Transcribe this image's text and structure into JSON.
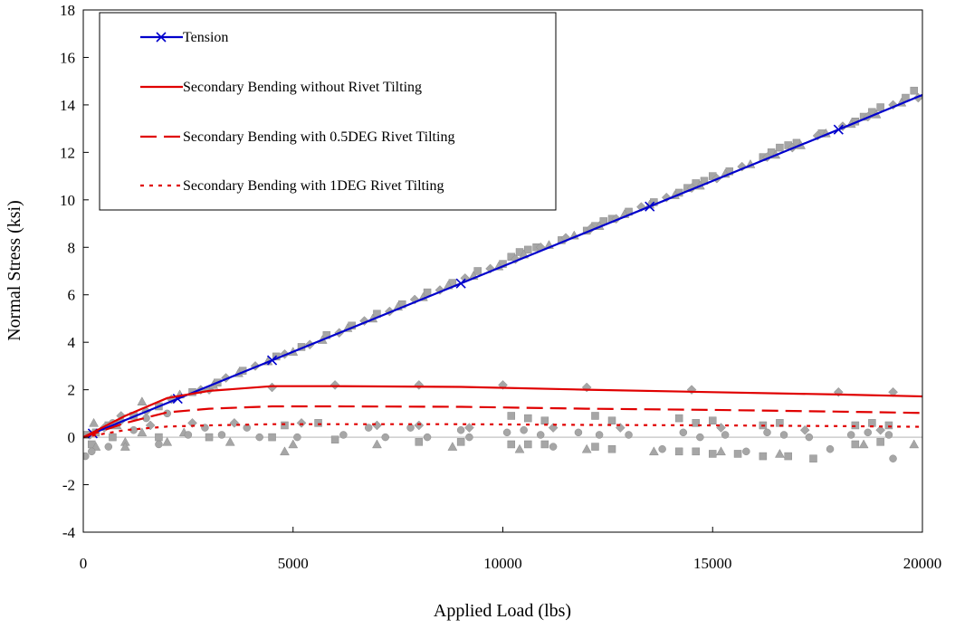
{
  "chart_data": {
    "type": "line",
    "title": "",
    "xlabel": "Applied Load (lbs)",
    "ylabel": "Normal Stress (ksi)",
    "xlim": [
      0,
      20000
    ],
    "ylim": [
      -4,
      18
    ],
    "xticks": [
      0,
      5000,
      10000,
      15000,
      20000
    ],
    "yticks": [
      -4,
      -2,
      0,
      2,
      4,
      6,
      8,
      10,
      12,
      14,
      16,
      18
    ],
    "grid": false,
    "legend_position": "top-left",
    "series": [
      {
        "name": "Tension",
        "color": "#0000cc",
        "style": "solid-with-x-markers",
        "x": [
          0,
          225,
          2250,
          4500,
          9000,
          13500,
          18000,
          20000
        ],
        "y": [
          0.0,
          0.16,
          1.62,
          3.24,
          6.48,
          9.72,
          12.96,
          14.42
        ],
        "marker_x": [
          225,
          2250,
          4500,
          9000,
          13500,
          18000
        ],
        "marker_y": [
          0.16,
          1.62,
          3.24,
          6.48,
          9.72,
          12.96
        ]
      },
      {
        "name": "Secondary Bending without Rivet Tilting",
        "color": "#e00000",
        "style": "solid",
        "x": [
          0,
          500,
          1000,
          2000,
          3000,
          4500,
          6000,
          9000,
          12000,
          15000,
          18000,
          20000
        ],
        "y": [
          0.0,
          0.45,
          0.9,
          1.65,
          1.95,
          2.15,
          2.15,
          2.12,
          2.0,
          1.9,
          1.8,
          1.72
        ]
      },
      {
        "name": "Secondary Bending with 0.5DEG Rivet Tilting",
        "color": "#e00000",
        "style": "dashed",
        "x": [
          0,
          500,
          1000,
          2000,
          3000,
          4500,
          6000,
          9000,
          12000,
          15000,
          18000,
          20000
        ],
        "y": [
          0.0,
          0.3,
          0.6,
          1.05,
          1.2,
          1.3,
          1.3,
          1.28,
          1.2,
          1.15,
          1.08,
          1.02
        ]
      },
      {
        "name": "Secondary Bending with 1DEG Rivet Tilting",
        "color": "#e00000",
        "style": "dotted",
        "x": [
          0,
          500,
          1000,
          2000,
          3000,
          4500,
          6000,
          9000,
          12000,
          15000,
          18000,
          20000
        ],
        "y": [
          0.0,
          0.15,
          0.3,
          0.45,
          0.5,
          0.55,
          0.55,
          0.55,
          0.52,
          0.5,
          0.47,
          0.44
        ]
      }
    ],
    "baseline_series": {
      "color": "#cccccc",
      "x": [
        0,
        20000
      ],
      "y": [
        0.0,
        0.0
      ]
    },
    "scatter_series": [
      {
        "marker": "square",
        "color": "#a6a6a6",
        "points": [
          [
            100,
            0.1
          ],
          [
            300,
            0.2
          ],
          [
            600,
            0.5
          ],
          [
            1200,
            0.9
          ],
          [
            1800,
            1.3
          ],
          [
            2600,
            1.9
          ],
          [
            3200,
            2.3
          ],
          [
            3800,
            2.8
          ],
          [
            4600,
            3.4
          ],
          [
            5200,
            3.8
          ],
          [
            5800,
            4.3
          ],
          [
            6400,
            4.7
          ],
          [
            7000,
            5.2
          ],
          [
            7600,
            5.6
          ],
          [
            8200,
            6.1
          ],
          [
            8800,
            6.5
          ],
          [
            9400,
            7.0
          ],
          [
            10000,
            7.3
          ],
          [
            10200,
            7.6
          ],
          [
            10400,
            7.8
          ],
          [
            10600,
            7.9
          ],
          [
            10800,
            8.0
          ],
          [
            11400,
            8.3
          ],
          [
            12000,
            8.7
          ],
          [
            12200,
            8.9
          ],
          [
            12400,
            9.1
          ],
          [
            12600,
            9.2
          ],
          [
            13000,
            9.5
          ],
          [
            13600,
            9.9
          ],
          [
            14200,
            10.3
          ],
          [
            14400,
            10.5
          ],
          [
            14600,
            10.7
          ],
          [
            14800,
            10.8
          ],
          [
            15000,
            11.0
          ],
          [
            15400,
            11.2
          ],
          [
            16200,
            11.8
          ],
          [
            16400,
            12.0
          ],
          [
            16600,
            12.2
          ],
          [
            16800,
            12.3
          ],
          [
            17000,
            12.4
          ],
          [
            17600,
            12.8
          ],
          [
            18400,
            13.3
          ],
          [
            18600,
            13.5
          ],
          [
            18800,
            13.7
          ],
          [
            19000,
            13.9
          ],
          [
            19600,
            14.3
          ],
          [
            19800,
            14.6
          ],
          [
            200,
            -0.3
          ],
          [
            700,
            0.0
          ],
          [
            1800,
            0.0
          ],
          [
            3000,
            0.0
          ],
          [
            4500,
            0.0
          ],
          [
            6000,
            -0.1
          ],
          [
            8000,
            -0.2
          ],
          [
            9000,
            -0.2
          ],
          [
            10200,
            -0.3
          ],
          [
            10600,
            -0.3
          ],
          [
            11000,
            -0.3
          ],
          [
            12200,
            -0.4
          ],
          [
            12600,
            -0.5
          ],
          [
            14200,
            -0.6
          ],
          [
            14600,
            -0.6
          ],
          [
            15000,
            -0.7
          ],
          [
            15600,
            -0.7
          ],
          [
            16200,
            -0.8
          ],
          [
            16800,
            -0.8
          ],
          [
            17400,
            -0.9
          ],
          [
            18400,
            -0.3
          ],
          [
            19000,
            -0.2
          ],
          [
            10200,
            0.9
          ],
          [
            10600,
            0.8
          ],
          [
            11000,
            0.7
          ],
          [
            12200,
            0.9
          ],
          [
            12600,
            0.7
          ],
          [
            14200,
            0.8
          ],
          [
            14600,
            0.6
          ],
          [
            15000,
            0.7
          ],
          [
            16200,
            0.5
          ],
          [
            16600,
            0.6
          ],
          [
            18400,
            0.5
          ],
          [
            18800,
            0.6
          ],
          [
            19200,
            0.5
          ],
          [
            4800,
            0.5
          ],
          [
            5600,
            0.6
          ]
        ]
      },
      {
        "marker": "diamond",
        "color": "#a6a6a6",
        "points": [
          [
            150,
            0.1
          ],
          [
            500,
            0.4
          ],
          [
            900,
            0.7
          ],
          [
            1500,
            1.1
          ],
          [
            2100,
            1.6
          ],
          [
            2800,
            2.0
          ],
          [
            3400,
            2.5
          ],
          [
            4100,
            3.0
          ],
          [
            4800,
            3.5
          ],
          [
            5400,
            3.9
          ],
          [
            6100,
            4.4
          ],
          [
            6700,
            4.9
          ],
          [
            7300,
            5.3
          ],
          [
            7900,
            5.8
          ],
          [
            8500,
            6.2
          ],
          [
            9100,
            6.7
          ],
          [
            9700,
            7.1
          ],
          [
            10300,
            7.5
          ],
          [
            10900,
            8.0
          ],
          [
            11500,
            8.4
          ],
          [
            12100,
            8.8
          ],
          [
            12700,
            9.2
          ],
          [
            13300,
            9.7
          ],
          [
            13900,
            10.1
          ],
          [
            14500,
            10.5
          ],
          [
            15100,
            10.9
          ],
          [
            15700,
            11.4
          ],
          [
            16300,
            11.8
          ],
          [
            16900,
            12.2
          ],
          [
            17500,
            12.7
          ],
          [
            18100,
            13.1
          ],
          [
            18700,
            13.5
          ],
          [
            19300,
            14.0
          ],
          [
            19900,
            14.3
          ],
          [
            900,
            0.9
          ],
          [
            1600,
            0.5
          ],
          [
            2600,
            0.6
          ],
          [
            3600,
            0.6
          ],
          [
            5200,
            0.6
          ],
          [
            7000,
            0.5
          ],
          [
            8000,
            0.5
          ],
          [
            9200,
            0.4
          ],
          [
            11200,
            0.4
          ],
          [
            12800,
            0.4
          ],
          [
            15200,
            0.4
          ],
          [
            17200,
            0.3
          ],
          [
            19000,
            0.3
          ],
          [
            3000,
            2.0
          ],
          [
            4500,
            2.1
          ],
          [
            6000,
            2.2
          ],
          [
            8000,
            2.2
          ],
          [
            10000,
            2.2
          ],
          [
            12000,
            2.1
          ],
          [
            14500,
            2.0
          ],
          [
            18000,
            1.9
          ],
          [
            19300,
            1.9
          ]
        ]
      },
      {
        "marker": "triangle",
        "color": "#a6a6a6",
        "points": [
          [
            250,
            0.6
          ],
          [
            800,
            0.5
          ],
          [
            1400,
            1.5
          ],
          [
            2300,
            1.8
          ],
          [
            3100,
            2.2
          ],
          [
            3700,
            2.7
          ],
          [
            4400,
            3.2
          ],
          [
            5000,
            3.6
          ],
          [
            5700,
            4.1
          ],
          [
            6300,
            4.6
          ],
          [
            6900,
            5.0
          ],
          [
            7500,
            5.5
          ],
          [
            8100,
            5.9
          ],
          [
            8700,
            6.4
          ],
          [
            9300,
            6.8
          ],
          [
            9900,
            7.2
          ],
          [
            10500,
            7.7
          ],
          [
            11100,
            8.1
          ],
          [
            11700,
            8.5
          ],
          [
            12300,
            8.9
          ],
          [
            12900,
            9.4
          ],
          [
            13500,
            9.8
          ],
          [
            14100,
            10.2
          ],
          [
            14700,
            10.6
          ],
          [
            15300,
            11.1
          ],
          [
            15900,
            11.5
          ],
          [
            16500,
            11.9
          ],
          [
            17100,
            12.3
          ],
          [
            17700,
            12.8
          ],
          [
            18300,
            13.2
          ],
          [
            18900,
            13.6
          ],
          [
            19500,
            14.1
          ],
          [
            300,
            -0.4
          ],
          [
            1000,
            -0.2
          ],
          [
            2000,
            -0.2
          ],
          [
            3500,
            -0.2
          ],
          [
            5000,
            -0.3
          ],
          [
            7000,
            -0.3
          ],
          [
            8800,
            -0.4
          ],
          [
            10400,
            -0.5
          ],
          [
            12000,
            -0.5
          ],
          [
            13600,
            -0.6
          ],
          [
            15200,
            -0.6
          ],
          [
            16600,
            -0.7
          ],
          [
            18600,
            -0.3
          ],
          [
            19800,
            -0.3
          ],
          [
            1400,
            0.2
          ],
          [
            2400,
            0.2
          ],
          [
            1000,
            -0.4
          ],
          [
            4800,
            -0.6
          ]
        ]
      },
      {
        "marker": "circle",
        "color": "#a6a6a6",
        "points": [
          [
            50,
            -0.8
          ],
          [
            200,
            -0.6
          ],
          [
            600,
            -0.4
          ],
          [
            1200,
            0.3
          ],
          [
            1800,
            -0.3
          ],
          [
            2500,
            0.1
          ],
          [
            3300,
            0.1
          ],
          [
            4200,
            0.0
          ],
          [
            5100,
            0.0
          ],
          [
            6200,
            0.1
          ],
          [
            7200,
            0.0
          ],
          [
            8200,
            0.0
          ],
          [
            9200,
            0.0
          ],
          [
            10100,
            0.2
          ],
          [
            10500,
            0.3
          ],
          [
            10900,
            0.1
          ],
          [
            11800,
            0.2
          ],
          [
            12300,
            0.1
          ],
          [
            13000,
            0.1
          ],
          [
            14300,
            0.2
          ],
          [
            14700,
            0.0
          ],
          [
            15300,
            0.1
          ],
          [
            16300,
            0.2
          ],
          [
            16700,
            0.1
          ],
          [
            17300,
            0.0
          ],
          [
            18300,
            0.1
          ],
          [
            18700,
            0.2
          ],
          [
            19200,
            0.1
          ],
          [
            19300,
            -0.9
          ],
          [
            15800,
            -0.6
          ],
          [
            17800,
            -0.5
          ],
          [
            11200,
            -0.4
          ],
          [
            13800,
            -0.5
          ],
          [
            9000,
            0.3
          ],
          [
            7800,
            0.4
          ],
          [
            6800,
            0.4
          ],
          [
            3900,
            0.4
          ],
          [
            2900,
            0.4
          ],
          [
            700,
            0.6
          ],
          [
            1500,
            0.8
          ],
          [
            2000,
            1.0
          ]
        ]
      }
    ]
  }
}
